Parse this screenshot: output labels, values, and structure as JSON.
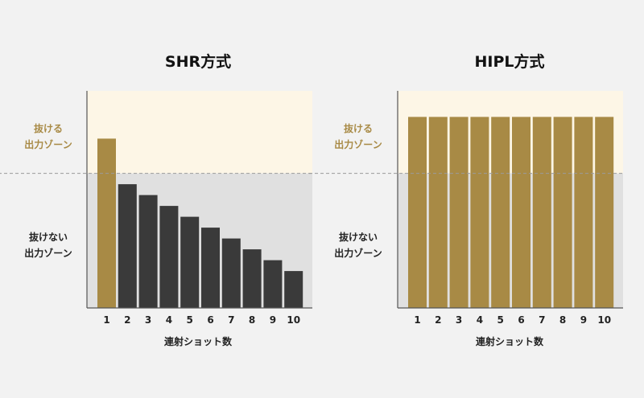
{
  "chart_data": [
    {
      "type": "bar",
      "title": "SHR方式",
      "xlabel": "連射ショット数",
      "categories": [
        "1",
        "2",
        "3",
        "4",
        "5",
        "6",
        "7",
        "8",
        "9",
        "10"
      ],
      "values": [
        78,
        57,
        52,
        47,
        42,
        37,
        32,
        27,
        22,
        17
      ],
      "highlight_index": 0,
      "threshold": 62,
      "ylim": [
        0,
        100
      ],
      "zones": {
        "high": [
          "抜ける",
          "出力ゾーン"
        ],
        "low": [
          "抜けない",
          "出力ゾーン"
        ]
      }
    },
    {
      "type": "bar",
      "title": "HIPL方式",
      "xlabel": "連射ショット数",
      "categories": [
        "1",
        "2",
        "3",
        "4",
        "5",
        "6",
        "7",
        "8",
        "9",
        "10"
      ],
      "values": [
        88,
        88,
        88,
        88,
        88,
        88,
        88,
        88,
        88,
        88
      ],
      "highlight_index": null,
      "threshold": 62,
      "ylim": [
        0,
        100
      ],
      "zones": {
        "high": [
          "抜ける",
          "出力ゾーン"
        ],
        "low": [
          "抜けない",
          "出力ゾーン"
        ]
      }
    }
  ],
  "colors": {
    "highlight": "#a88a45",
    "bar": "#3a3a3a",
    "zone_high": "#fdf6e6",
    "zone_low": "#e0e0e0",
    "axis": "#555555"
  }
}
